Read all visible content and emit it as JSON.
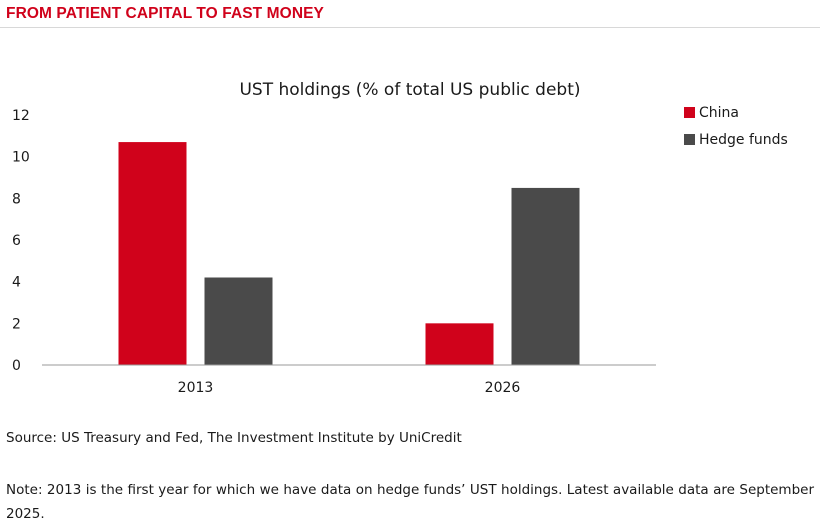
{
  "header": {
    "title": "FROM PATIENT CAPITAL TO FAST MONEY"
  },
  "chart_data": {
    "type": "bar",
    "title": "UST holdings (% of total US public debt)",
    "xlabel": "",
    "ylabel": "",
    "categories": [
      "2013",
      "2026"
    ],
    "series": [
      {
        "name": "China",
        "values": [
          10.7,
          2.0
        ],
        "color": "#d0021b"
      },
      {
        "name": "Hedge funds",
        "values": [
          4.2,
          8.5
        ],
        "color": "#4a4a4a"
      }
    ],
    "ylim": [
      0,
      12
    ],
    "yticks": [
      "0",
      "2",
      "4",
      "6",
      "8",
      "10",
      "12"
    ],
    "grid": false,
    "legend": "right"
  },
  "footer": {
    "source": "Source: US Treasury and Fed, The Investment Institute by UniCredit",
    "note": "Note: 2013 is the first year for which we have data on hedge funds’ UST holdings. Latest available data are September 2025."
  }
}
